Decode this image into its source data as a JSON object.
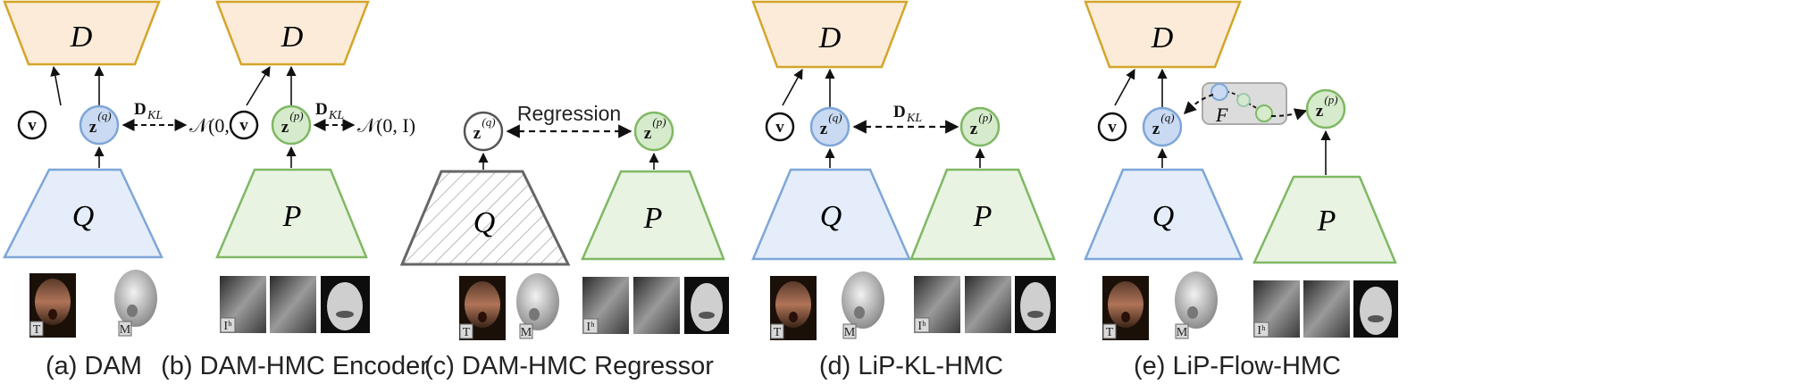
{
  "captions": {
    "a": "(a) DAM",
    "b": "(b) DAM-HMC Encoder",
    "c": "(c) DAM-HMC Regressor",
    "d": "(d) LiP-KL-HMC",
    "e": "(e) LiP-Flow-HMC"
  },
  "labels": {
    "D": "D",
    "Q": "Q",
    "P": "P",
    "F": "F",
    "v": "v",
    "z": "z",
    "sup_q": "(q)",
    "sup_p": "(p)",
    "kl": "D",
    "kl_sub": "KL",
    "normal": "𝒩(0, I)",
    "regression": "Regression",
    "texture_tag": "T",
    "mesh_tag": "M",
    "hmc_tag": "Iʰ"
  },
  "colors": {
    "decoder_fill": "#fdebd9",
    "decoder_stroke": "#d4a52a",
    "q_fill": "#e4edf9",
    "q_stroke": "#7ea6d8",
    "p_fill": "#e8f3e1",
    "p_stroke": "#7fb864",
    "zq_fill": "#c9daf2",
    "zp_fill": "#d6ebcc",
    "flow_box": "#dcdcdc"
  }
}
